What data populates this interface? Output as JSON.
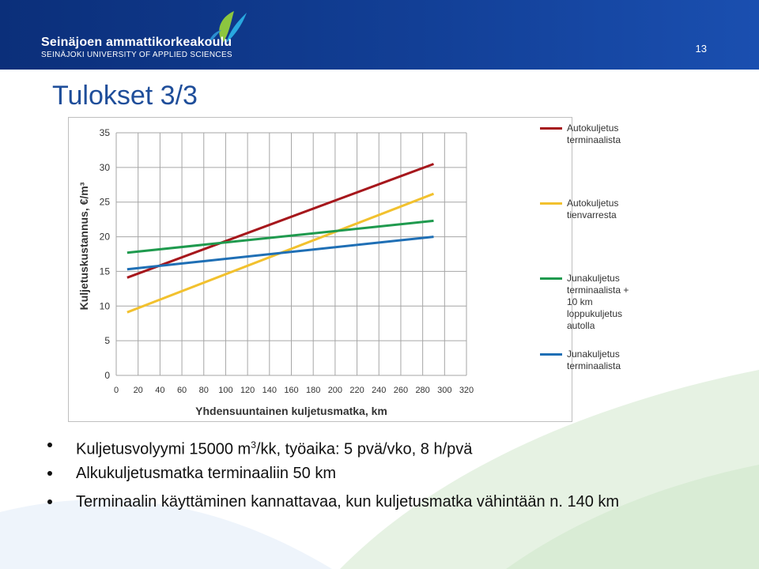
{
  "header": {
    "brand_name": "Seinäjoen ammattikorkeakoulu",
    "brand_sub": "SEINÄJOKI UNIVERSITY OF APPLIED SCIENCES",
    "page_number": "13",
    "colors": {
      "background": "#123f96",
      "logo_green": "#8cc63f",
      "logo_blue": "#29a8e0"
    }
  },
  "slide": {
    "title": "Tulokset 3/3"
  },
  "chart_data": {
    "type": "line",
    "title": "",
    "xlabel": "Yhdensuuntainen kuljetusmatka, km",
    "ylabel": "Kuljetuskustannus, €/m³",
    "xlim": [
      0,
      320
    ],
    "ylim": [
      0,
      35
    ],
    "x_ticks": [
      0,
      20,
      40,
      60,
      80,
      100,
      120,
      140,
      160,
      180,
      200,
      220,
      240,
      260,
      280,
      300,
      320
    ],
    "y_ticks": [
      0,
      5,
      10,
      15,
      20,
      25,
      30,
      35
    ],
    "grid": true,
    "legend_position": "right",
    "series": [
      {
        "name": "Autokuljetus terminaalista",
        "color": "#a6171c",
        "x": [
          10,
          290
        ],
        "y": [
          14.1,
          30.5
        ],
        "legend_lines": [
          "Autokuljetus",
          "terminaalista"
        ]
      },
      {
        "name": "Autokuljetus tienvarresta",
        "color": "#f2c12e",
        "x": [
          10,
          290
        ],
        "y": [
          9.1,
          26.2
        ],
        "legend_lines": [
          "Autokuljetus",
          "tienvarresta"
        ]
      },
      {
        "name": "Junakuljetus terminaalista + 10 km loppukuljetus autolla",
        "color": "#1f9a4e",
        "x": [
          10,
          290
        ],
        "y": [
          17.7,
          22.3
        ],
        "legend_lines": [
          "Junakuljetus",
          "terminaalista +",
          "10 km",
          "loppukuljetus",
          "autolla"
        ]
      },
      {
        "name": "Junakuljetus terminaalista",
        "color": "#1f6fb5",
        "x": [
          10,
          290
        ],
        "y": [
          15.3,
          20.0
        ],
        "legend_lines": [
          "Junakuljetus",
          "terminaalista"
        ]
      }
    ]
  },
  "bullets": [
    {
      "before": "Kuljetusvolyymi 15000 m",
      "sup": "3",
      "after": "/kk, työaika: 5 pvä/vko, 8 h/pvä"
    },
    {
      "before": "Alkukuljetusmatka terminaaliin 50 km",
      "sup": "",
      "after": ""
    },
    {
      "before": "Terminaalin käyttäminen kannattavaa, kun kuljetusmatka vähintään n. 140 km",
      "sup": "",
      "after": ""
    }
  ]
}
